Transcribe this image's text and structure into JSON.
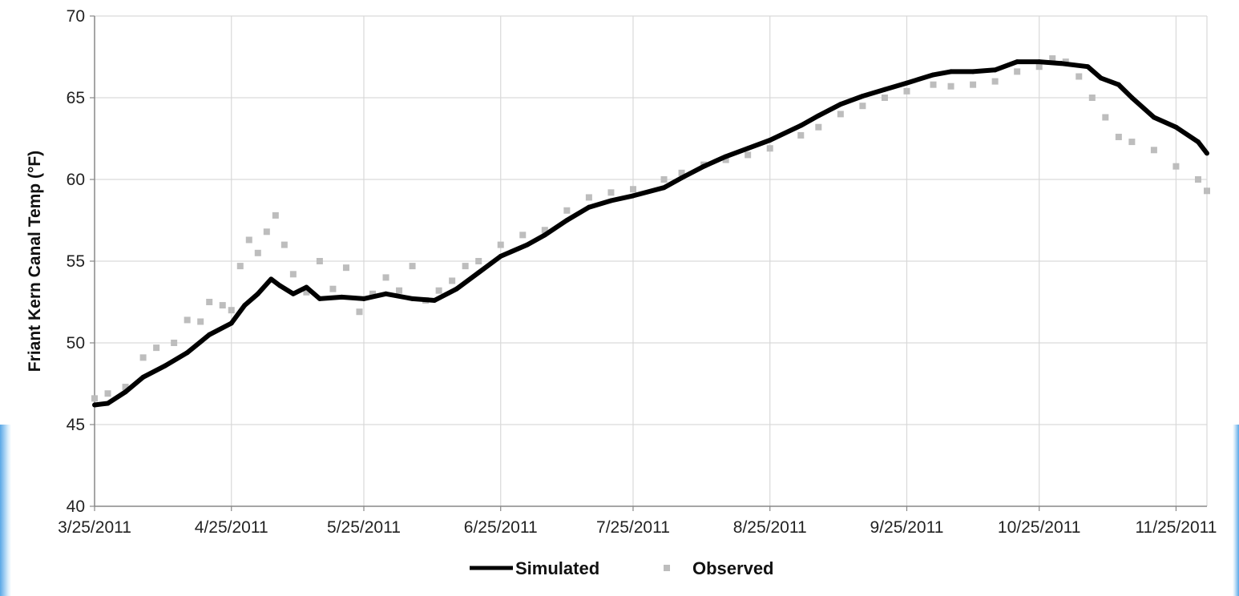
{
  "chart_data": {
    "type": "line",
    "title": "",
    "ylabel": "Friant Kern Canal Temp (°F)",
    "xlabel": "",
    "x_tick_labels": [
      "3/25/2011",
      "4/25/2011",
      "5/25/2011",
      "6/25/2011",
      "7/25/2011",
      "8/25/2011",
      "9/25/2011",
      "10/25/2011",
      "11/25/2011"
    ],
    "x_tick_dates": [
      "2011-03-25",
      "2011-04-25",
      "2011-05-25",
      "2011-06-25",
      "2011-07-25",
      "2011-08-25",
      "2011-09-25",
      "2011-10-25",
      "2011-11-25"
    ],
    "xlim": [
      "2011-03-25",
      "2011-12-02"
    ],
    "y_ticks": [
      40,
      45,
      50,
      55,
      60,
      65,
      70
    ],
    "ylim": [
      40,
      70
    ],
    "grid": true,
    "legend": {
      "placement": "bottom-center",
      "entries": [
        "Simulated",
        "Observed"
      ]
    },
    "series": [
      {
        "name": "Simulated",
        "style": "line",
        "color": "#000000",
        "points": [
          [
            "2011-03-25",
            46.2
          ],
          [
            "2011-03-28",
            46.3
          ],
          [
            "2011-04-01",
            47.0
          ],
          [
            "2011-04-05",
            47.9
          ],
          [
            "2011-04-10",
            48.6
          ],
          [
            "2011-04-15",
            49.4
          ],
          [
            "2011-04-20",
            50.5
          ],
          [
            "2011-04-25",
            51.2
          ],
          [
            "2011-04-28",
            52.3
          ],
          [
            "2011-05-01",
            53.0
          ],
          [
            "2011-05-04",
            53.9
          ],
          [
            "2011-05-06",
            53.5
          ],
          [
            "2011-05-09",
            53.0
          ],
          [
            "2011-05-12",
            53.4
          ],
          [
            "2011-05-15",
            52.7
          ],
          [
            "2011-05-20",
            52.8
          ],
          [
            "2011-05-25",
            52.7
          ],
          [
            "2011-05-30",
            53.0
          ],
          [
            "2011-06-05",
            52.7
          ],
          [
            "2011-06-10",
            52.6
          ],
          [
            "2011-06-15",
            53.3
          ],
          [
            "2011-06-20",
            54.3
          ],
          [
            "2011-06-25",
            55.3
          ],
          [
            "2011-07-01",
            56.0
          ],
          [
            "2011-07-05",
            56.6
          ],
          [
            "2011-07-10",
            57.5
          ],
          [
            "2011-07-15",
            58.3
          ],
          [
            "2011-07-20",
            58.7
          ],
          [
            "2011-07-25",
            59.0
          ],
          [
            "2011-08-01",
            59.5
          ],
          [
            "2011-08-05",
            60.1
          ],
          [
            "2011-08-10",
            60.8
          ],
          [
            "2011-08-15",
            61.4
          ],
          [
            "2011-08-20",
            61.9
          ],
          [
            "2011-08-25",
            62.4
          ],
          [
            "2011-09-01",
            63.3
          ],
          [
            "2011-09-05",
            63.9
          ],
          [
            "2011-09-10",
            64.6
          ],
          [
            "2011-09-15",
            65.1
          ],
          [
            "2011-09-20",
            65.5
          ],
          [
            "2011-09-25",
            65.9
          ],
          [
            "2011-10-01",
            66.4
          ],
          [
            "2011-10-05",
            66.6
          ],
          [
            "2011-10-10",
            66.6
          ],
          [
            "2011-10-15",
            66.7
          ],
          [
            "2011-10-20",
            67.2
          ],
          [
            "2011-10-25",
            67.2
          ],
          [
            "2011-10-30",
            67.1
          ],
          [
            "2011-11-05",
            66.9
          ],
          [
            "2011-11-08",
            66.2
          ],
          [
            "2011-11-12",
            65.8
          ],
          [
            "2011-11-15",
            65.0
          ],
          [
            "2011-11-20",
            63.8
          ],
          [
            "2011-11-25",
            63.2
          ],
          [
            "2011-11-30",
            62.3
          ],
          [
            "2011-12-02",
            61.6
          ]
        ]
      },
      {
        "name": "Observed",
        "style": "markers",
        "color": "#bdbdbd",
        "points": [
          [
            "2011-03-25",
            46.6
          ],
          [
            "2011-03-28",
            46.9
          ],
          [
            "2011-04-01",
            47.3
          ],
          [
            "2011-04-05",
            49.1
          ],
          [
            "2011-04-08",
            49.7
          ],
          [
            "2011-04-12",
            50.0
          ],
          [
            "2011-04-15",
            51.4
          ],
          [
            "2011-04-18",
            51.3
          ],
          [
            "2011-04-20",
            52.5
          ],
          [
            "2011-04-23",
            52.3
          ],
          [
            "2011-04-25",
            52.0
          ],
          [
            "2011-04-27",
            54.7
          ],
          [
            "2011-04-29",
            56.3
          ],
          [
            "2011-05-01",
            55.5
          ],
          [
            "2011-05-03",
            56.8
          ],
          [
            "2011-05-05",
            57.8
          ],
          [
            "2011-05-07",
            56.0
          ],
          [
            "2011-05-09",
            54.2
          ],
          [
            "2011-05-12",
            53.1
          ],
          [
            "2011-05-15",
            55.0
          ],
          [
            "2011-05-18",
            53.3
          ],
          [
            "2011-05-21",
            54.6
          ],
          [
            "2011-05-24",
            51.9
          ],
          [
            "2011-05-27",
            53.0
          ],
          [
            "2011-05-30",
            54.0
          ],
          [
            "2011-06-02",
            53.2
          ],
          [
            "2011-06-05",
            54.7
          ],
          [
            "2011-06-08",
            52.6
          ],
          [
            "2011-06-11",
            53.2
          ],
          [
            "2011-06-14",
            53.8
          ],
          [
            "2011-06-17",
            54.7
          ],
          [
            "2011-06-20",
            55.0
          ],
          [
            "2011-06-25",
            56.0
          ],
          [
            "2011-06-30",
            56.6
          ],
          [
            "2011-07-05",
            56.9
          ],
          [
            "2011-07-10",
            58.1
          ],
          [
            "2011-07-15",
            58.9
          ],
          [
            "2011-07-20",
            59.2
          ],
          [
            "2011-07-25",
            59.4
          ],
          [
            "2011-08-01",
            60.0
          ],
          [
            "2011-08-05",
            60.4
          ],
          [
            "2011-08-10",
            60.9
          ],
          [
            "2011-08-15",
            61.2
          ],
          [
            "2011-08-20",
            61.5
          ],
          [
            "2011-08-25",
            61.9
          ],
          [
            "2011-09-01",
            62.7
          ],
          [
            "2011-09-05",
            63.2
          ],
          [
            "2011-09-10",
            64.0
          ],
          [
            "2011-09-15",
            64.5
          ],
          [
            "2011-09-20",
            65.0
          ],
          [
            "2011-09-25",
            65.4
          ],
          [
            "2011-10-01",
            65.8
          ],
          [
            "2011-10-05",
            65.7
          ],
          [
            "2011-10-10",
            65.8
          ],
          [
            "2011-10-15",
            66.0
          ],
          [
            "2011-10-20",
            66.6
          ],
          [
            "2011-10-25",
            66.9
          ],
          [
            "2011-10-28",
            67.4
          ],
          [
            "2011-10-31",
            67.2
          ],
          [
            "2011-11-03",
            66.3
          ],
          [
            "2011-11-06",
            65.0
          ],
          [
            "2011-11-09",
            63.8
          ],
          [
            "2011-11-12",
            62.6
          ],
          [
            "2011-11-15",
            62.3
          ],
          [
            "2011-11-20",
            61.8
          ],
          [
            "2011-11-25",
            60.8
          ],
          [
            "2011-11-30",
            60.0
          ],
          [
            "2011-12-02",
            59.3
          ]
        ]
      }
    ]
  }
}
